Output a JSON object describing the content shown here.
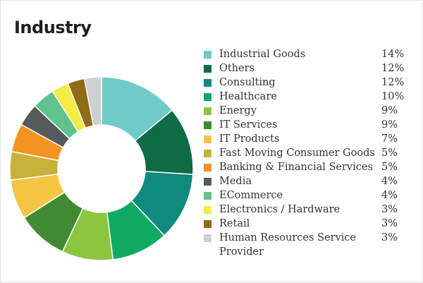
{
  "title": "Industry",
  "chart_data": {
    "type": "pie",
    "title": "Industry",
    "donut": true,
    "legend_position": "right",
    "slices": [
      {
        "label": "Industrial Goods",
        "value": 14,
        "display": "14%",
        "color": "#6ecbc8"
      },
      {
        "label": "Others",
        "value": 12,
        "display": "12%",
        "color": "#0d6b45"
      },
      {
        "label": "Consulting",
        "value": 12,
        "display": "12%",
        "color": "#0f8a7d"
      },
      {
        "label": "Healthcare",
        "value": 10,
        "display": "10%",
        "color": "#0faa62"
      },
      {
        "label": "Energy",
        "value": 9,
        "display": "9%",
        "color": "#8cc63f"
      },
      {
        "label": "IT Services",
        "value": 9,
        "display": "9%",
        "color": "#3f8a32"
      },
      {
        "label": "IT Products",
        "value": 7,
        "display": "7%",
        "color": "#f4c543"
      },
      {
        "label": "Fast Moving Consumer Goods",
        "value": 5,
        "display": "5%",
        "color": "#c8b23c"
      },
      {
        "label": "Banking & Financial Services",
        "value": 5,
        "display": "5%",
        "color": "#f39423"
      },
      {
        "label": "Media",
        "value": 4,
        "display": "4%",
        "color": "#555a5d"
      },
      {
        "label": "ECommerce",
        "value": 4,
        "display": "4%",
        "color": "#5fc38e"
      },
      {
        "label": "Electronics / Hardware",
        "value": 3,
        "display": "3%",
        "color": "#f2ec44"
      },
      {
        "label": "Retail",
        "value": 3,
        "display": "3%",
        "color": "#8e6b14"
      },
      {
        "label": "Human Resources Service Provider",
        "value": 3,
        "display": "3%",
        "color": "#cfd0d2"
      }
    ]
  }
}
